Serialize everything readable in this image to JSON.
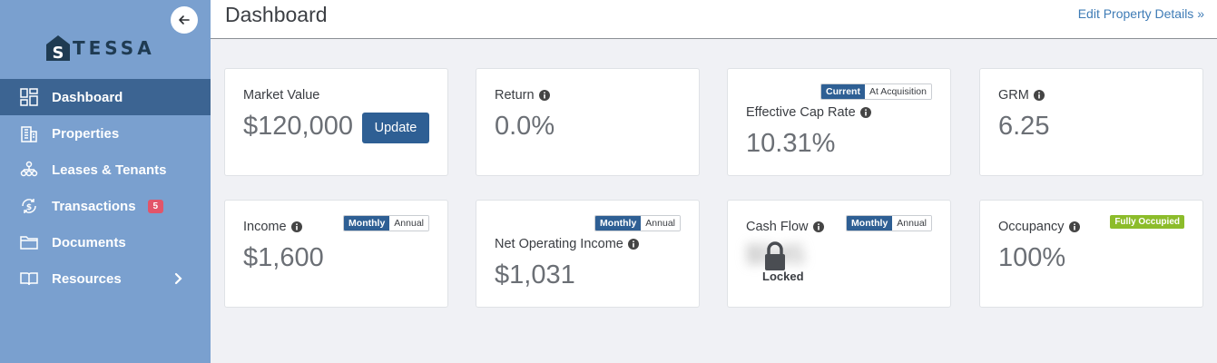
{
  "sidebar": {
    "logo_text": "TESSA",
    "logo_letter": "S",
    "items": [
      {
        "label": "Dashboard",
        "icon": "dashboard-icon"
      },
      {
        "label": "Properties",
        "icon": "building-icon"
      },
      {
        "label": "Leases & Tenants",
        "icon": "people-tree-icon"
      },
      {
        "label": "Transactions",
        "icon": "dollar-cycle-icon",
        "badge": "5"
      },
      {
        "label": "Documents",
        "icon": "folder-icon"
      },
      {
        "label": "Resources",
        "icon": "book-icon"
      }
    ]
  },
  "header": {
    "title": "Dashboard",
    "edit_link": "Edit Property Details »"
  },
  "cards": {
    "market_value": {
      "label": "Market Value",
      "value": "$120,000",
      "button": "Update"
    },
    "return": {
      "label": "Return",
      "value": "0.0%"
    },
    "cap_rate": {
      "label": "Effective Cap Rate",
      "value": "10.31%",
      "toggle_on": "Current",
      "toggle_off": "At Acquisition"
    },
    "grm": {
      "label": "GRM",
      "value": "6.25"
    },
    "income": {
      "label": "Income",
      "value": "$1,600",
      "toggle_on": "Monthly",
      "toggle_off": "Annual"
    },
    "noi": {
      "label": "Net Operating Income",
      "value": "$1,031",
      "toggle_on": "Monthly",
      "toggle_off": "Annual"
    },
    "cash_flow": {
      "label": "Cash Flow",
      "blurred_value": "$545",
      "locked": "Locked",
      "toggle_on": "Monthly",
      "toggle_off": "Annual"
    },
    "occupancy": {
      "label": "Occupancy",
      "value": "100%",
      "badge": "Fully Occupied"
    }
  },
  "colors": {
    "sidebar_bg": "#7aa0cf",
    "sidebar_active": "#3c6492",
    "accent": "#2e5f94",
    "badge_red": "#e2556a",
    "badge_green": "#8cbc2a"
  }
}
